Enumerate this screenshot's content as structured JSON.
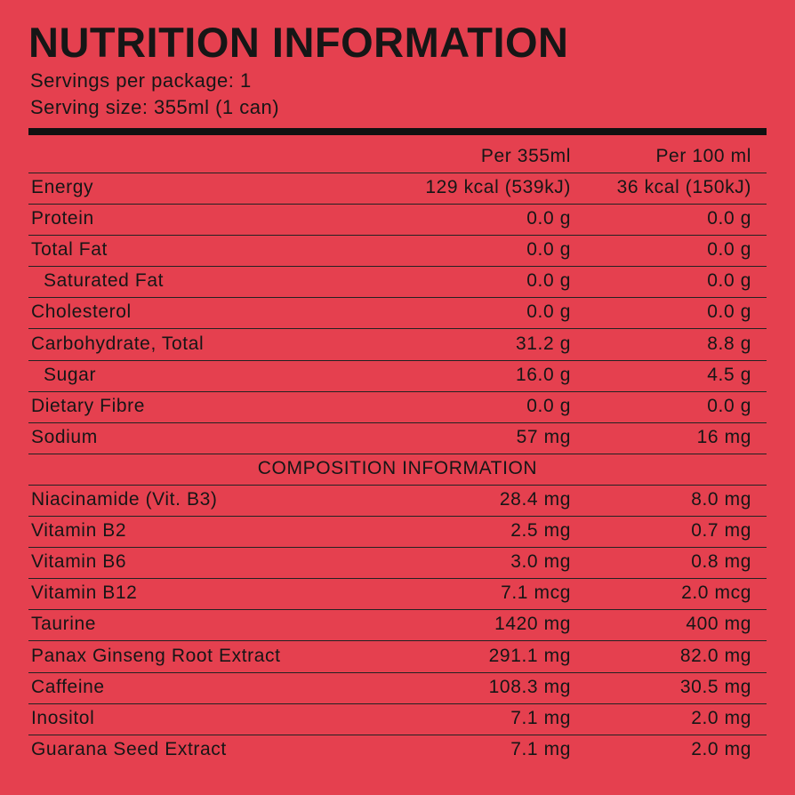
{
  "header": {
    "title": "NUTRITION INFORMATION",
    "servings_per_package": "Servings per package: 1",
    "serving_size": "Serving size: 355ml (1 can)"
  },
  "table": {
    "columns": [
      "Per 355ml",
      "Per 100 ml"
    ],
    "rows": [
      [
        "Energy",
        "129 kcal (539kJ)",
        "36 kcal (150kJ)"
      ],
      [
        "Protein",
        "0.0 g",
        "0.0 g"
      ],
      [
        "Total Fat",
        "0.0 g",
        "0.0 g"
      ],
      [
        "Saturated Fat",
        "0.0 g",
        "0.0 g"
      ],
      [
        "Cholesterol",
        "0.0 g",
        "0.0 g"
      ],
      [
        "Carbohydrate, Total",
        "31.2 g",
        "8.8 g"
      ],
      [
        "Sugar",
        "16.0 g",
        "4.5 g"
      ],
      [
        "Dietary Fibre",
        "0.0 g",
        "0.0 g"
      ],
      [
        "Sodium",
        "57 mg",
        "16 mg"
      ]
    ],
    "composition_title": "COMPOSITION INFORMATION",
    "composition_rows": [
      [
        "Niacinamide (Vit. B3)",
        "28.4 mg",
        "8.0 mg"
      ],
      [
        "Vitamin B2",
        "2.5 mg",
        "0.7 mg"
      ],
      [
        "Vitamin B6",
        "3.0 mg",
        "0.8 mg"
      ],
      [
        "Vitamin B12",
        "7.1 mcg",
        "2.0 mcg"
      ],
      [
        "Taurine",
        "1420 mg",
        "400 mg"
      ],
      [
        "Panax Ginseng Root Extract",
        "291.1 mg",
        "82.0 mg"
      ],
      [
        "Caffeine",
        "108.3 mg",
        "30.5 mg"
      ],
      [
        "Inositol",
        "7.1 mg",
        "2.0 mg"
      ],
      [
        "Guarana Seed Extract",
        "7.1 mg",
        "2.0 mg"
      ]
    ]
  }
}
